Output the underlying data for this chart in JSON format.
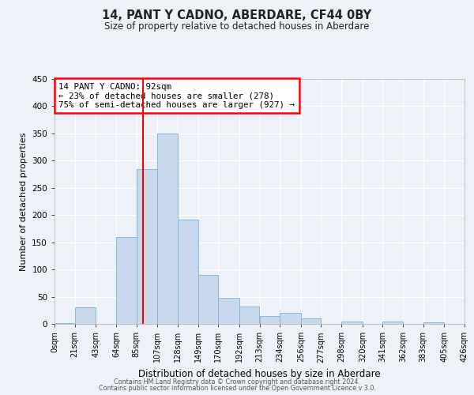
{
  "title": "14, PANT Y CADNO, ABERDARE, CF44 0BY",
  "subtitle": "Size of property relative to detached houses in Aberdare",
  "xlabel": "Distribution of detached houses by size in Aberdare",
  "ylabel": "Number of detached properties",
  "bar_color": "#c9d9ed",
  "bar_edge_color": "#7ab0d4",
  "background_color": "#eef2f8",
  "grid_color": "#ffffff",
  "vline_x": 92,
  "vline_color": "red",
  "annotation_line1": "14 PANT Y CADNO: 92sqm",
  "annotation_line2": "← 23% of detached houses are smaller (278)",
  "annotation_line3": "75% of semi-detached houses are larger (927) →",
  "annotation_box_color": "red",
  "bin_edges": [
    0,
    21,
    43,
    64,
    85,
    107,
    128,
    149,
    170,
    192,
    213,
    234,
    256,
    277,
    298,
    320,
    341,
    362,
    383,
    405,
    426
  ],
  "bin_counts": [
    2,
    30,
    0,
    160,
    285,
    350,
    192,
    90,
    48,
    32,
    14,
    20,
    10,
    0,
    5,
    0,
    5,
    0,
    3,
    0
  ],
  "tick_labels": [
    "0sqm",
    "21sqm",
    "43sqm",
    "64sqm",
    "85sqm",
    "107sqm",
    "128sqm",
    "149sqm",
    "170sqm",
    "192sqm",
    "213sqm",
    "234sqm",
    "256sqm",
    "277sqm",
    "298sqm",
    "320sqm",
    "341sqm",
    "362sqm",
    "383sqm",
    "405sqm",
    "426sqm"
  ],
  "ylim": [
    0,
    450
  ],
  "yticks": [
    0,
    50,
    100,
    150,
    200,
    250,
    300,
    350,
    400,
    450
  ],
  "footer_line1": "Contains HM Land Registry data © Crown copyright and database right 2024.",
  "footer_line2": "Contains public sector information licensed under the Open Government Licence v 3.0."
}
